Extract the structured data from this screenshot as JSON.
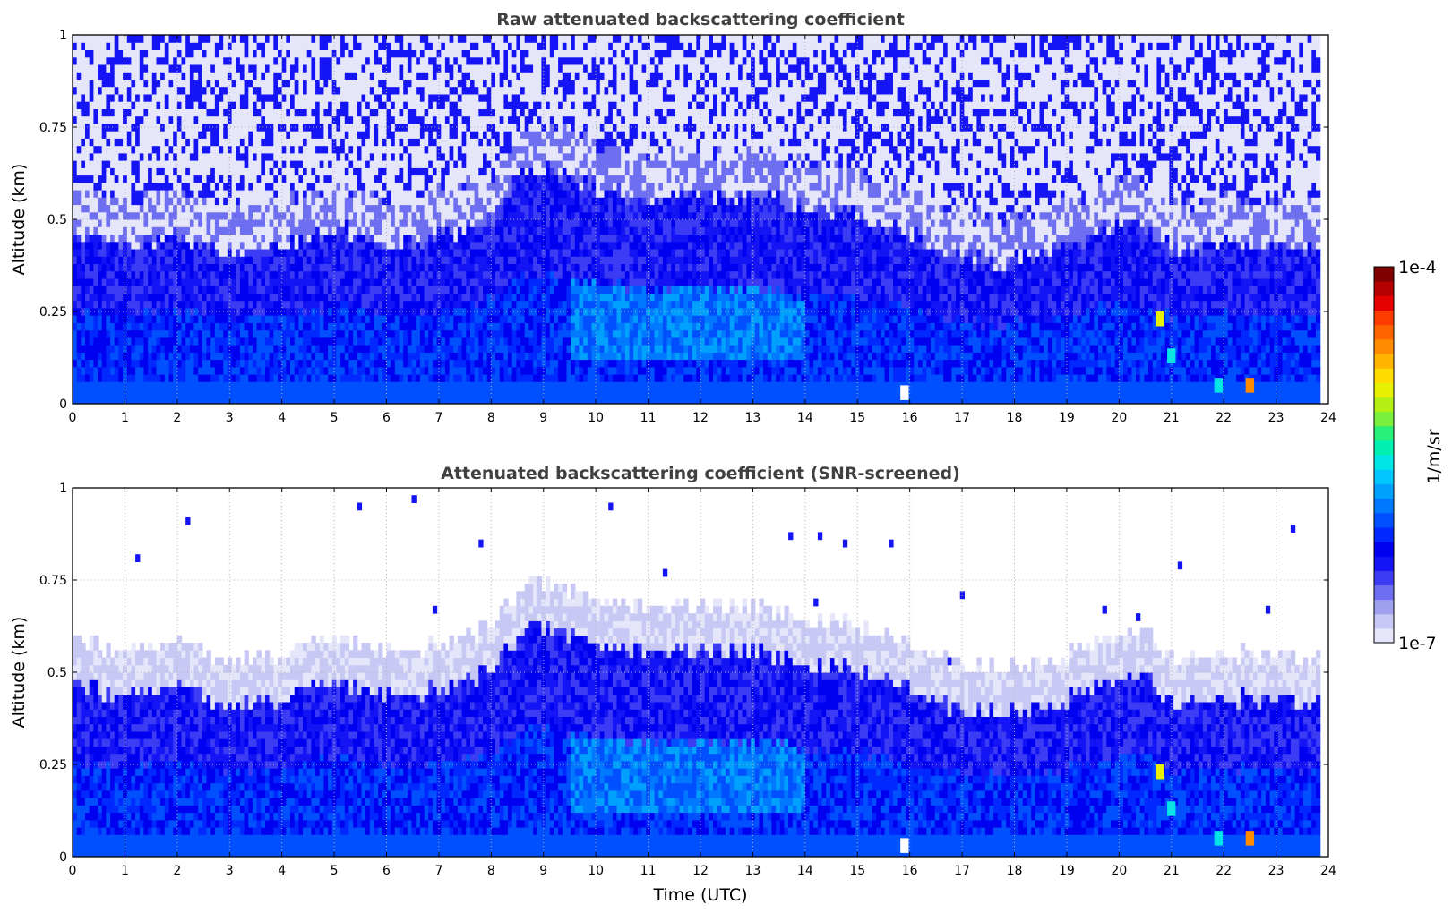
{
  "chart_data": [
    {
      "type": "heatmap",
      "title": "Raw attenuated backscattering coefficient",
      "xlabel": "",
      "ylabel": "Altitude (km)",
      "xlim": [
        0,
        24
      ],
      "ylim": [
        0,
        1
      ],
      "xticks": [
        "0",
        "1",
        "2",
        "3",
        "4",
        "5",
        "6",
        "7",
        "8",
        "9",
        "10",
        "11",
        "12",
        "13",
        "14",
        "15",
        "16",
        "17",
        "18",
        "19",
        "20",
        "21",
        "22",
        "23",
        "24"
      ],
      "yticks": [
        "0",
        "0.25",
        "0.5",
        "0.75",
        "1"
      ],
      "grid": true,
      "data_end_hour": 23.8,
      "screened": false,
      "layer_top_km": [
        [
          0,
          0.45
        ],
        [
          1,
          0.42
        ],
        [
          2,
          0.45
        ],
        [
          3,
          0.4
        ],
        [
          4,
          0.42
        ],
        [
          5,
          0.47
        ],
        [
          6,
          0.42
        ],
        [
          7,
          0.45
        ],
        [
          8,
          0.5
        ],
        [
          8.6,
          0.62
        ],
        [
          9,
          0.62
        ],
        [
          10,
          0.58
        ],
        [
          11,
          0.55
        ],
        [
          12,
          0.55
        ],
        [
          13,
          0.55
        ],
        [
          14,
          0.52
        ],
        [
          15,
          0.5
        ],
        [
          16,
          0.45
        ],
        [
          17,
          0.38
        ],
        [
          18,
          0.38
        ],
        [
          19,
          0.42
        ],
        [
          20,
          0.48
        ],
        [
          20.5,
          0.47
        ],
        [
          21,
          0.4
        ],
        [
          22,
          0.42
        ],
        [
          23,
          0.42
        ],
        [
          23.8,
          0.4
        ]
      ],
      "hotspots": [
        {
          "t": 15.9,
          "z": 0.02,
          "level": "white"
        },
        {
          "t": 20.78,
          "z": 0.22,
          "level": "yellow"
        },
        {
          "t": 21.0,
          "z": 0.12,
          "level": "cyan"
        },
        {
          "t": 22.5,
          "z": 0.04,
          "level": "orange"
        },
        {
          "t": 21.9,
          "z": 0.04,
          "level": "cyan"
        }
      ]
    },
    {
      "type": "heatmap",
      "title": "Attenuated backscattering coefficient (SNR-screened)",
      "xlabel": "Time (UTC)",
      "ylabel": "Altitude (km)",
      "xlim": [
        0,
        24
      ],
      "ylim": [
        0,
        1
      ],
      "xticks": [
        "0",
        "1",
        "2",
        "3",
        "4",
        "5",
        "6",
        "7",
        "8",
        "9",
        "10",
        "11",
        "12",
        "13",
        "14",
        "15",
        "16",
        "17",
        "18",
        "19",
        "20",
        "21",
        "22",
        "23",
        "24"
      ],
      "yticks": [
        "0",
        "0.25",
        "0.5",
        "0.75",
        "1"
      ],
      "grid": true,
      "data_end_hour": 23.8,
      "screened": true,
      "layer_top_km": [
        [
          0,
          0.45
        ],
        [
          1,
          0.42
        ],
        [
          2,
          0.45
        ],
        [
          3,
          0.4
        ],
        [
          4,
          0.42
        ],
        [
          5,
          0.47
        ],
        [
          6,
          0.42
        ],
        [
          7,
          0.45
        ],
        [
          8,
          0.5
        ],
        [
          8.6,
          0.62
        ],
        [
          9,
          0.62
        ],
        [
          10,
          0.58
        ],
        [
          11,
          0.55
        ],
        [
          12,
          0.55
        ],
        [
          13,
          0.55
        ],
        [
          14,
          0.52
        ],
        [
          15,
          0.5
        ],
        [
          16,
          0.45
        ],
        [
          17,
          0.38
        ],
        [
          18,
          0.38
        ],
        [
          19,
          0.42
        ],
        [
          20,
          0.48
        ],
        [
          20.5,
          0.47
        ],
        [
          21,
          0.4
        ],
        [
          22,
          0.42
        ],
        [
          23,
          0.42
        ],
        [
          23.8,
          0.4
        ]
      ],
      "hotspots": [
        {
          "t": 15.9,
          "z": 0.02,
          "level": "white"
        },
        {
          "t": 20.78,
          "z": 0.22,
          "level": "yellow"
        },
        {
          "t": 21.0,
          "z": 0.12,
          "level": "cyan"
        },
        {
          "t": 22.5,
          "z": 0.04,
          "level": "orange"
        },
        {
          "t": 21.9,
          "z": 0.04,
          "level": "cyan"
        }
      ]
    }
  ],
  "colorbar": {
    "label": "1/m/sr",
    "max_label": "1e-4",
    "min_label": "1e-7",
    "colors": [
      "#e6e6fa",
      "#c8c8f5",
      "#a0a0f0",
      "#6e6ef0",
      "#3c3cf5",
      "#1414f5",
      "#0000f0",
      "#0028ff",
      "#0050ff",
      "#0078ff",
      "#00a0ff",
      "#00c8ff",
      "#00e6e6",
      "#00f0b4",
      "#28f078",
      "#78f03c",
      "#b4f014",
      "#e6f000",
      "#ffdc00",
      "#ffb400",
      "#ff8c00",
      "#ff6400",
      "#ff3c00",
      "#e60000",
      "#b40000",
      "#800000"
    ]
  }
}
